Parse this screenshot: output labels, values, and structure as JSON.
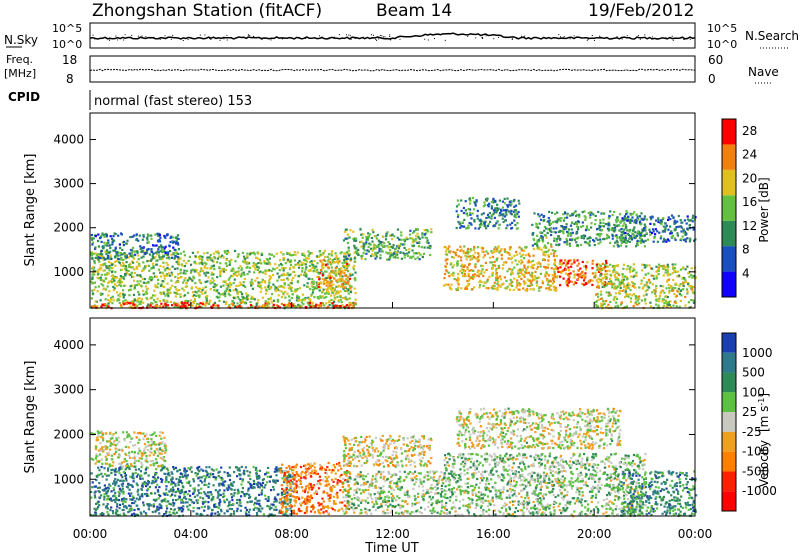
{
  "header": {
    "title": "Zhongshan Station (fitACF)",
    "beam": "Beam 14",
    "date": "19/Feb/2012"
  },
  "noise_panel": {
    "left_label": "N.Sky",
    "right_label": "N.Search",
    "tick_top": "10^5",
    "tick_bottom": "10^0"
  },
  "freq_panel": {
    "left_label_line1": "Freq.",
    "left_label_line2": "[MHz]",
    "right_label": "Nave",
    "left_ticks": [
      "18",
      "8"
    ],
    "right_ticks": [
      "60",
      "0"
    ]
  },
  "cpid": {
    "label": "CPID",
    "text": "normal (fast stereo) 153"
  },
  "chart_data": [
    {
      "type": "heatmap",
      "title": "Power",
      "ylabel": "Slant Range [km]",
      "xlabel": "Time UT",
      "x_ticks": [
        "00:00",
        "04:00",
        "08:00",
        "12:00",
        "16:00",
        "20:00",
        "00:00"
      ],
      "xlim_hours": [
        0,
        24
      ],
      "y_ticks": [
        1000,
        2000,
        3000,
        4000
      ],
      "ylim": [
        180,
        4600
      ],
      "colorbar": {
        "label": "Power [dB]",
        "ticks": [
          4,
          8,
          12,
          16,
          20,
          24,
          28
        ],
        "range": [
          0,
          30
        ],
        "colors": [
          "#1000ff",
          "#1a4fbf",
          "#2e8b57",
          "#66c040",
          "#e0c020",
          "#f08010",
          "#ff0000"
        ]
      },
      "scatter_regions": [
        {
          "t": [
            0.0,
            10.5
          ],
          "range": [
            200,
            1500
          ],
          "value": 16
        },
        {
          "t": [
            0.0,
            10.5
          ],
          "range": [
            200,
            320
          ],
          "value": 27
        },
        {
          "t": [
            0.0,
            3.5
          ],
          "range": [
            1300,
            1900
          ],
          "value": 9
        },
        {
          "t": [
            9.0,
            10.3
          ],
          "range": [
            600,
            1300
          ],
          "value": 22
        },
        {
          "t": [
            10.0,
            13.5
          ],
          "range": [
            1300,
            2000
          ],
          "value": 13
        },
        {
          "t": [
            14.0,
            18.5
          ],
          "range": [
            600,
            1600
          ],
          "value": 20
        },
        {
          "t": [
            14.5,
            17.0
          ],
          "range": [
            2000,
            2700
          ],
          "value": 10
        },
        {
          "t": [
            17.5,
            22.0
          ],
          "range": [
            1600,
            2400
          ],
          "value": 12
        },
        {
          "t": [
            18.5,
            20.5
          ],
          "range": [
            700,
            1300
          ],
          "value": 25
        },
        {
          "t": [
            20.0,
            24.0
          ],
          "range": [
            200,
            1200
          ],
          "value": 17
        },
        {
          "t": [
            21.0,
            24.0
          ],
          "range": [
            1700,
            2300
          ],
          "value": 9
        }
      ]
    },
    {
      "type": "heatmap",
      "title": "Velocity",
      "ylabel": "Slant Range [km]",
      "xlabel": "Time UT",
      "x_ticks": [
        "00:00",
        "04:00",
        "08:00",
        "12:00",
        "16:00",
        "20:00",
        "00:00"
      ],
      "xlim_hours": [
        0,
        24
      ],
      "y_ticks": [
        1000,
        2000,
        3000,
        4000
      ],
      "ylim": [
        180,
        4600
      ],
      "colorbar": {
        "label_main": "Velocity",
        "label_unit": "[m s",
        "label_exp": "-1",
        "label_close": "]",
        "tick_labels": [
          "1000",
          "500",
          "100",
          "25",
          "-25",
          "-100",
          "-500",
          "-1000"
        ],
        "colors": [
          "#1a3fb0",
          "#2e7a8a",
          "#2e8b57",
          "#5cc040",
          "#c8c8c0",
          "#f0a020",
          "#ff8000",
          "#ff2000",
          "#ff0000"
        ]
      },
      "scatter_regions": [
        {
          "t": [
            0.0,
            8.0
          ],
          "range": [
            200,
            1300
          ],
          "value": 700
        },
        {
          "t": [
            0.0,
            3.0
          ],
          "range": [
            1300,
            2100
          ],
          "value": 0
        },
        {
          "t": [
            7.5,
            10.3
          ],
          "range": [
            250,
            1400
          ],
          "value": -500
        },
        {
          "t": [
            10.0,
            14.0
          ],
          "range": [
            250,
            1200
          ],
          "value": 150
        },
        {
          "t": [
            10.0,
            13.5
          ],
          "range": [
            1300,
            2000
          ],
          "value": -60
        },
        {
          "t": [
            14.0,
            22.0
          ],
          "range": [
            200,
            1600
          ],
          "value": 200
        },
        {
          "t": [
            14.5,
            21.0
          ],
          "range": [
            1700,
            2600
          ],
          "value": 0
        },
        {
          "t": [
            21.0,
            24.0
          ],
          "range": [
            200,
            1200
          ],
          "value": 600
        }
      ]
    }
  ]
}
